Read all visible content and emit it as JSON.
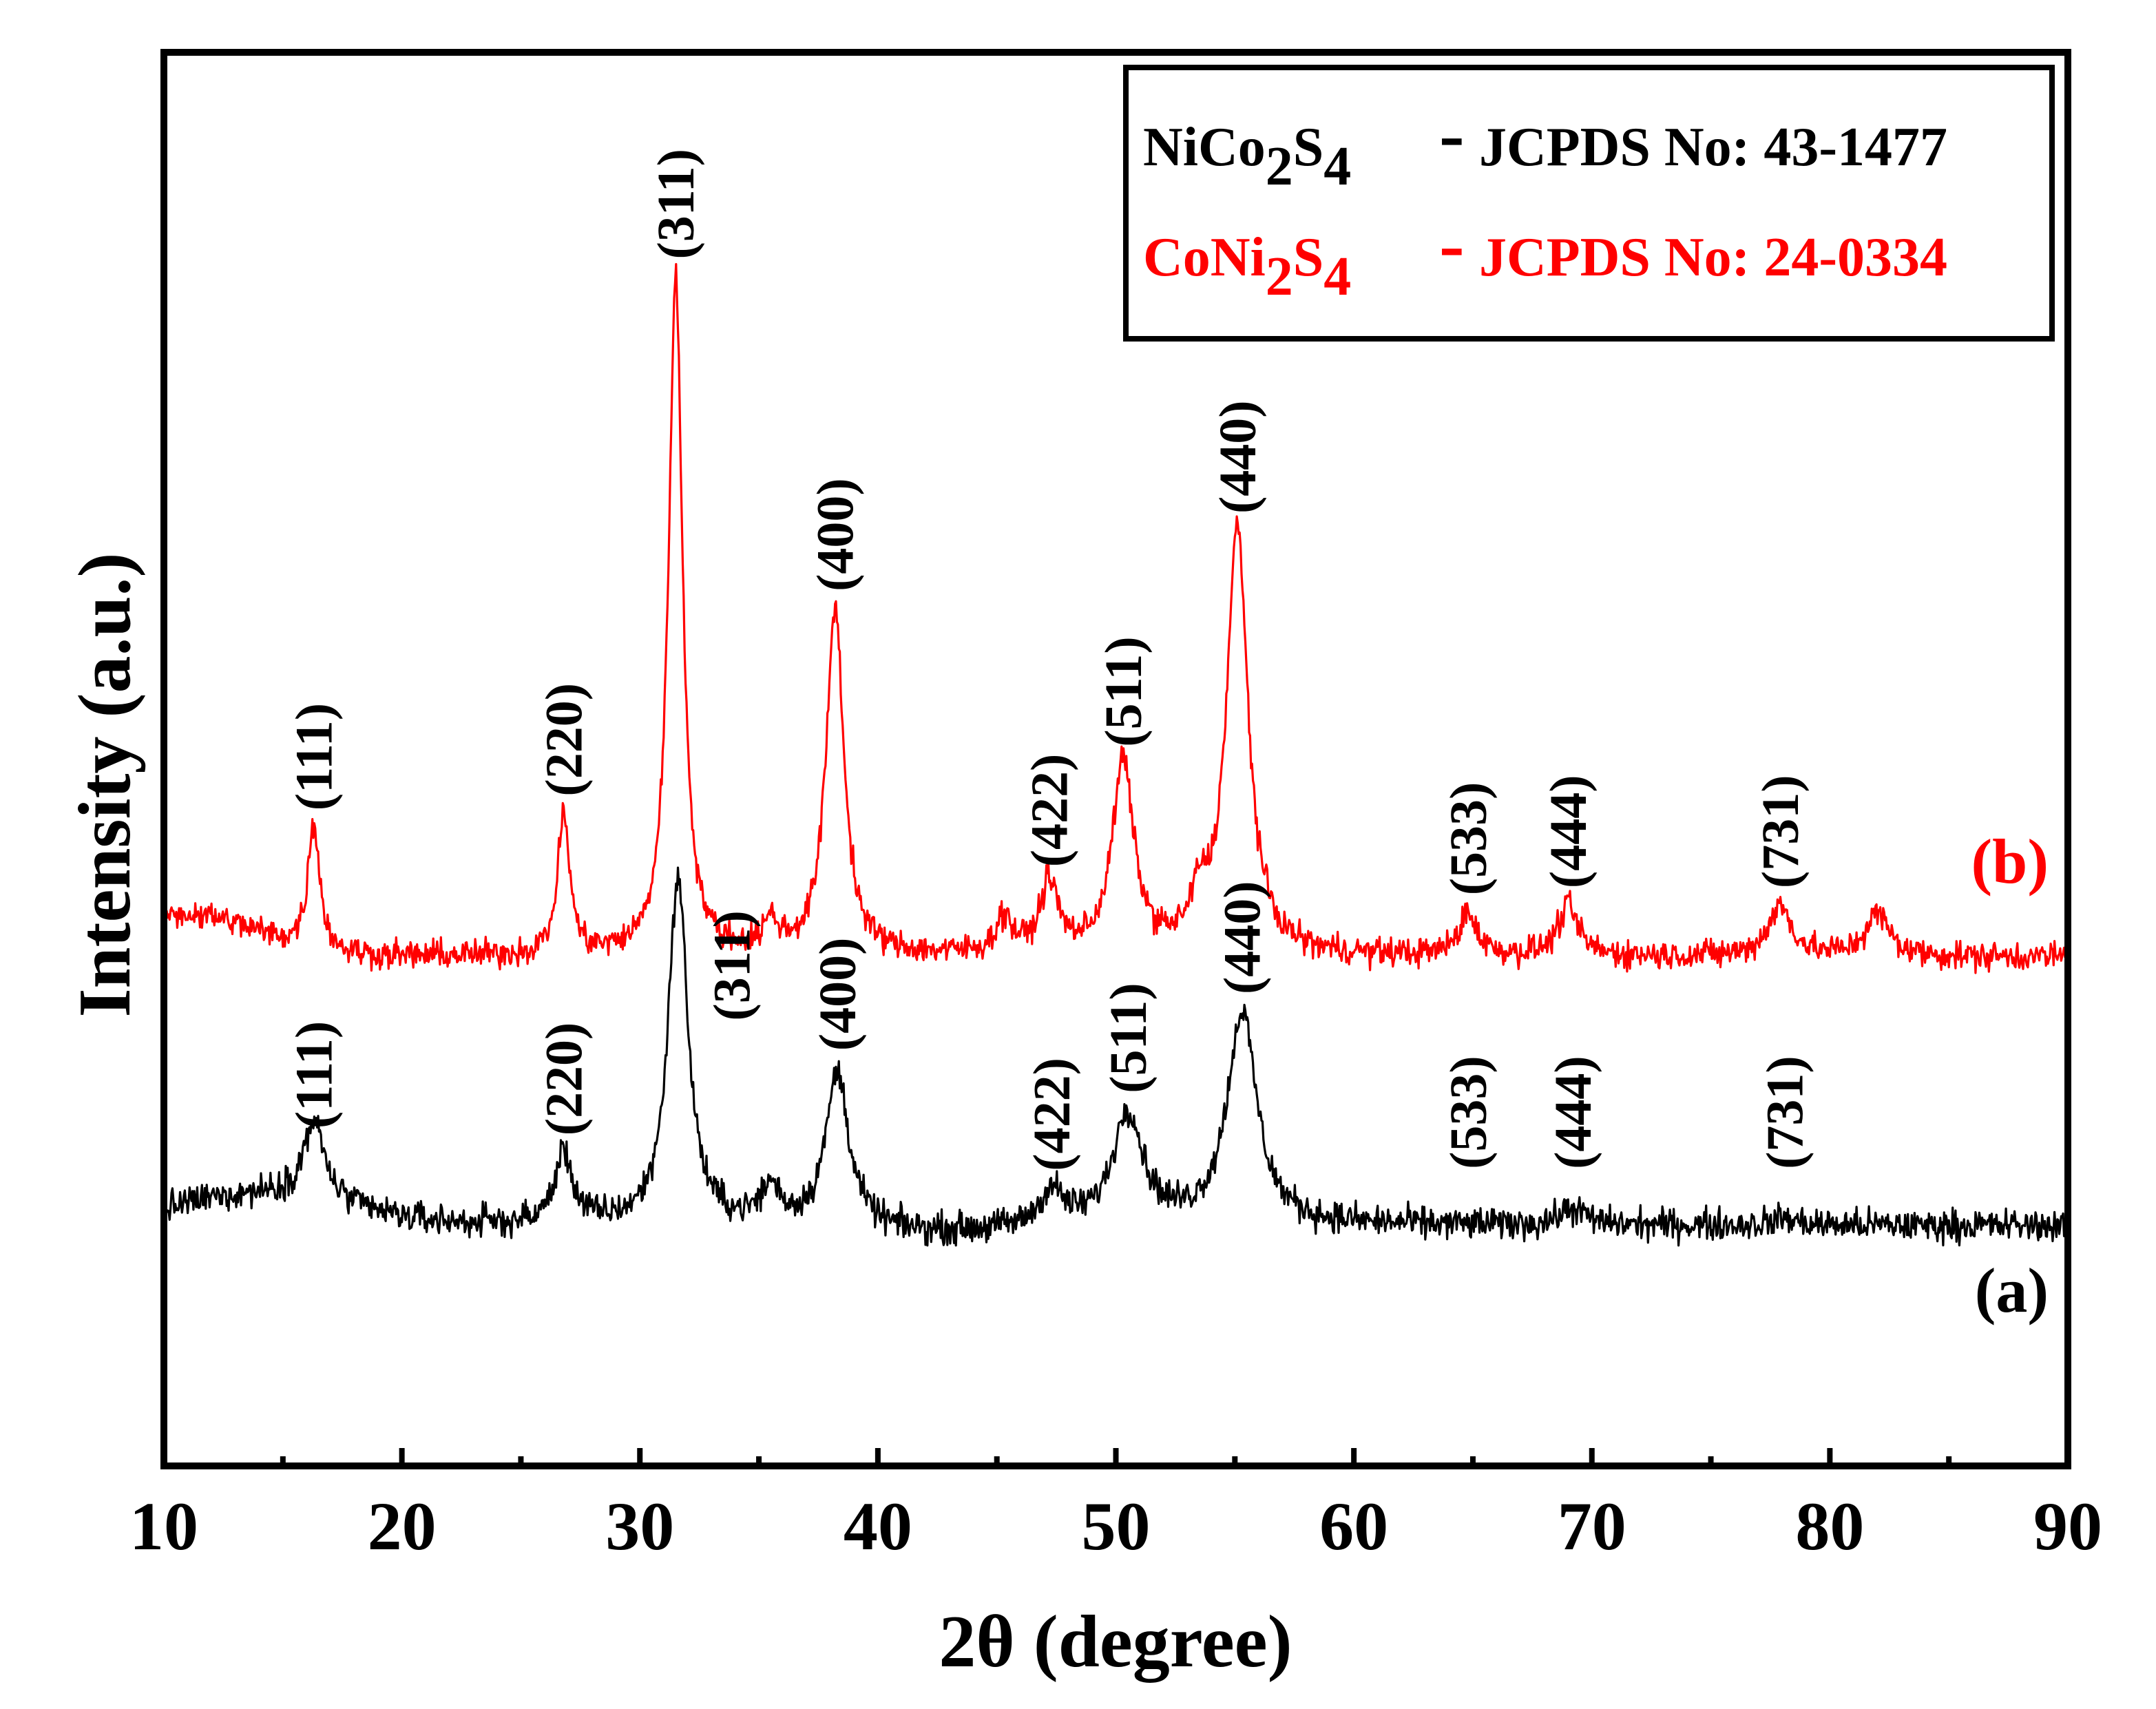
{
  "chart_data": {
    "type": "line",
    "title": "",
    "xlabel": "2θ (degree)",
    "ylabel": "Intensity (a.u.)",
    "xlim": [
      10,
      90
    ],
    "ylim": [
      0,
      100
    ],
    "xticks": [
      10,
      20,
      30,
      40,
      50,
      60,
      70,
      80,
      90
    ],
    "xtick_labels": [
      "10",
      "20",
      "30",
      "40",
      "50",
      "60",
      "70",
      "80",
      "90"
    ],
    "yticks_shown": false,
    "legend": {
      "position": "top-right",
      "entries": [
        {
          "compound": "NiCo2S4",
          "parts": [
            "NiCo",
            "2",
            "S",
            "4"
          ],
          "dash": "-",
          "ref": "JCPDS No: 43-1477",
          "color": "#000000"
        },
        {
          "compound": "CoNi2S4",
          "parts": [
            "CoNi",
            "2",
            "S",
            "4"
          ],
          "dash": "-",
          "ref": "JCPDS No: 24-0334",
          "color": "#ff0000"
        }
      ]
    },
    "series": [
      {
        "name": "(a)",
        "color": "#000000",
        "baseline": 17,
        "peaks": [
          {
            "x": 16.3,
            "h": 5.5,
            "w": 0.55,
            "label": "(111)"
          },
          {
            "x": 26.8,
            "h": 5.0,
            "w": 0.45,
            "label": "(220)"
          },
          {
            "x": 31.6,
            "h": 24.5,
            "w": 0.5,
            "label": "(311)"
          },
          {
            "x": 35.5,
            "h": 2.5,
            "w": 0.5,
            "label": ""
          },
          {
            "x": 38.3,
            "h": 11.0,
            "w": 0.6,
            "label": "(400)"
          },
          {
            "x": 47.3,
            "h": 2.5,
            "w": 0.6,
            "label": "(422)"
          },
          {
            "x": 50.5,
            "h": 8.0,
            "w": 0.75,
            "label": "(511)"
          },
          {
            "x": 55.3,
            "h": 15.0,
            "w": 0.75,
            "label": "(440)"
          },
          {
            "x": 64.8,
            "h": 0.0,
            "w": 0.6,
            "label": "(533)"
          },
          {
            "x": 69.2,
            "h": 1.2,
            "w": 0.6,
            "label": "(444)"
          },
          {
            "x": 78.1,
            "h": 0.5,
            "w": 0.6,
            "label": "(731)"
          }
        ],
        "tag": "(a)"
      },
      {
        "name": "(b)",
        "color": "#ff0000",
        "baseline": 36,
        "peaks": [
          {
            "x": 16.3,
            "h": 9.0,
            "w": 0.3,
            "label": "(111)"
          },
          {
            "x": 26.8,
            "h": 10.0,
            "w": 0.3,
            "label": "(220)"
          },
          {
            "x": 31.5,
            "h": 48.0,
            "w": 0.35,
            "label": "(311)"
          },
          {
            "x": 35.5,
            "h": 2.0,
            "w": 0.4,
            "label": ""
          },
          {
            "x": 38.2,
            "h": 24.5,
            "w": 0.45,
            "label": "(400)"
          },
          {
            "x": 45.3,
            "h": 2.5,
            "w": 0.4,
            "label": ""
          },
          {
            "x": 47.2,
            "h": 5.0,
            "w": 0.45,
            "label": "(422)"
          },
          {
            "x": 50.3,
            "h": 13.5,
            "w": 0.55,
            "label": "(511)"
          },
          {
            "x": 53.5,
            "h": 3.0,
            "w": 0.4,
            "label": ""
          },
          {
            "x": 55.1,
            "h": 30.0,
            "w": 0.55,
            "label": "(440)"
          },
          {
            "x": 64.8,
            "h": 3.0,
            "w": 0.45,
            "label": "(533)"
          },
          {
            "x": 69.0,
            "h": 3.5,
            "w": 0.5,
            "label": "(444)"
          },
          {
            "x": 77.9,
            "h": 3.5,
            "w": 0.6,
            "label": "(731)"
          },
          {
            "x": 82.0,
            "h": 3.0,
            "w": 0.6,
            "label": ""
          }
        ],
        "tag": "(b)"
      }
    ]
  }
}
